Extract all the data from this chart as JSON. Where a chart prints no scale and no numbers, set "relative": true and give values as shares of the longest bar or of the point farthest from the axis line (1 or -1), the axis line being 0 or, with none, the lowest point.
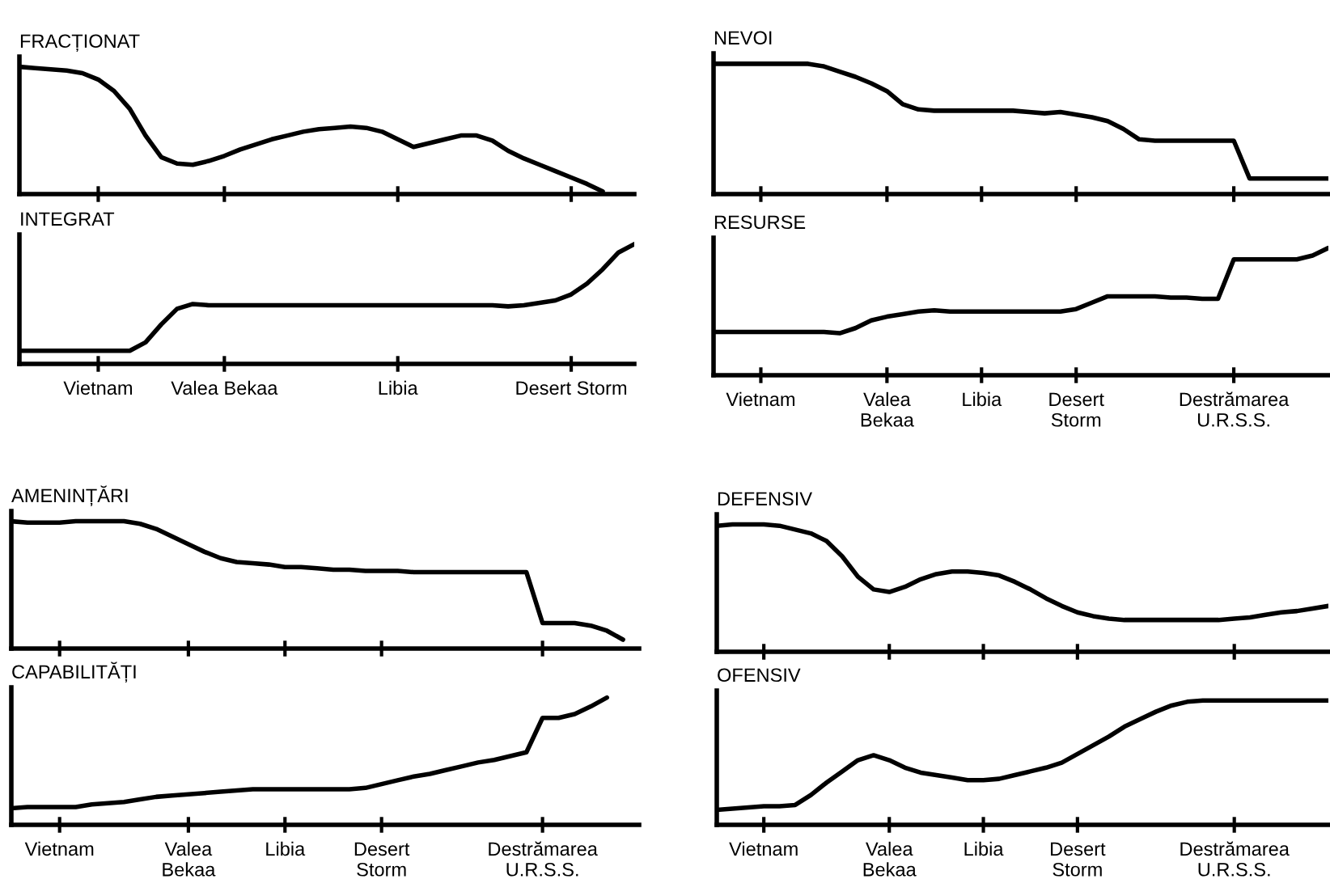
{
  "chart_data": [
    {
      "type": "line",
      "title": "FRACȚIONAT",
      "relative": true,
      "tick_labels": false,
      "categories": [
        null,
        null,
        null,
        null,
        null,
        null,
        null,
        null,
        null,
        null,
        null,
        null,
        null,
        null,
        null,
        null,
        null,
        null,
        null,
        null,
        null,
        null,
        null,
        null,
        null,
        null,
        null,
        null,
        null,
        null,
        null,
        null,
        null,
        null,
        null,
        null,
        null,
        null,
        null,
        null
      ],
      "series": [
        {
          "color": "#000000",
          "values": [
            1.0,
            0.99,
            0.98,
            0.97,
            0.95,
            0.9,
            0.81,
            0.67,
            0.46,
            0.29,
            0.24,
            0.23,
            0.26,
            0.3,
            0.35,
            0.39,
            0.43,
            0.46,
            0.49,
            0.51,
            0.52,
            0.53,
            0.52,
            0.49,
            0.43,
            0.37,
            0.4,
            0.43,
            0.46,
            0.46,
            0.42,
            0.34,
            0.28,
            0.23,
            0.18,
            0.13,
            0.08,
            0.02,
            null,
            null
          ]
        }
      ]
    },
    {
      "type": "line",
      "title": "INTEGRAT",
      "relative": true,
      "categories": [
        null,
        null,
        null,
        null,
        null,
        "Vietnam",
        null,
        null,
        null,
        null,
        null,
        null,
        null,
        "Valea Bekaa",
        null,
        null,
        null,
        null,
        null,
        null,
        null,
        null,
        null,
        null,
        "Libia",
        null,
        null,
        null,
        null,
        null,
        null,
        null,
        null,
        null,
        null,
        "Desert Storm",
        null,
        null,
        null,
        null
      ],
      "series": [
        {
          "color": "#000000",
          "values": [
            0.11,
            0.11,
            0.11,
            0.11,
            0.11,
            0.11,
            0.11,
            0.11,
            0.18,
            0.33,
            0.46,
            0.5,
            0.49,
            0.49,
            0.49,
            0.49,
            0.49,
            0.49,
            0.49,
            0.49,
            0.49,
            0.49,
            0.49,
            0.49,
            0.49,
            0.49,
            0.49,
            0.49,
            0.49,
            0.49,
            0.49,
            0.48,
            0.49,
            0.51,
            0.53,
            0.58,
            0.67,
            0.79,
            0.93,
            1.0
          ]
        }
      ]
    },
    {
      "type": "line",
      "title": "NEVOI",
      "relative": true,
      "tick_labels": false,
      "categories": [
        null,
        null,
        null,
        null,
        null,
        null,
        null,
        null,
        null,
        null,
        null,
        null,
        null,
        null,
        null,
        null,
        null,
        null,
        null,
        null,
        null,
        null,
        null,
        null,
        null,
        null,
        null,
        null,
        null,
        null,
        null,
        null,
        null,
        null,
        null,
        null,
        null,
        null,
        null,
        null
      ],
      "series": [
        {
          "color": "#000000",
          "values": [
            1.0,
            1.0,
            1.0,
            1.0,
            1.0,
            1.0,
            1.0,
            0.98,
            0.94,
            0.9,
            0.85,
            0.79,
            0.69,
            0.65,
            0.64,
            0.64,
            0.64,
            0.64,
            0.64,
            0.64,
            0.63,
            0.62,
            0.63,
            0.61,
            0.59,
            0.56,
            0.5,
            0.42,
            0.41,
            0.41,
            0.41,
            0.41,
            0.41,
            0.41,
            0.12,
            0.12,
            0.12,
            0.12,
            0.12,
            0.12
          ]
        }
      ]
    },
    {
      "type": "line",
      "title": "RESURSE",
      "relative": true,
      "categories": [
        null,
        null,
        null,
        "Vietnam",
        null,
        null,
        null,
        null,
        null,
        null,
        null,
        "Valea\nBekaa",
        null,
        null,
        null,
        null,
        null,
        "Libia",
        null,
        null,
        null,
        null,
        null,
        "Desert\nStorm",
        null,
        null,
        null,
        null,
        null,
        null,
        null,
        null,
        null,
        "Destrămarea\nU.R.S.S.",
        null,
        null,
        null,
        null,
        null,
        null
      ],
      "series": [
        {
          "color": "#000000",
          "values": [
            0.34,
            0.34,
            0.34,
            0.34,
            0.34,
            0.34,
            0.34,
            0.34,
            0.33,
            0.37,
            0.43,
            0.46,
            0.48,
            0.5,
            0.51,
            0.5,
            0.5,
            0.5,
            0.5,
            0.5,
            0.5,
            0.5,
            0.5,
            0.52,
            0.57,
            0.62,
            0.62,
            0.62,
            0.62,
            0.61,
            0.61,
            0.6,
            0.6,
            0.91,
            0.91,
            0.91,
            0.91,
            0.91,
            0.94,
            1.0
          ]
        }
      ]
    },
    {
      "type": "line",
      "title": "AMENINȚĂRI",
      "relative": true,
      "tick_labels": false,
      "categories": [
        null,
        null,
        null,
        null,
        null,
        null,
        null,
        null,
        null,
        null,
        null,
        null,
        null,
        null,
        null,
        null,
        null,
        null,
        null,
        null,
        null,
        null,
        null,
        null,
        null,
        null,
        null,
        null,
        null,
        null,
        null,
        null,
        null,
        null,
        null,
        null,
        null,
        null,
        null,
        null
      ],
      "series": [
        {
          "color": "#000000",
          "values": [
            1.0,
            0.99,
            0.99,
            0.99,
            1.0,
            1.0,
            1.0,
            1.0,
            0.98,
            0.94,
            0.88,
            0.82,
            0.76,
            0.71,
            0.68,
            0.67,
            0.66,
            0.64,
            0.64,
            0.63,
            0.62,
            0.62,
            0.61,
            0.61,
            0.61,
            0.6,
            0.6,
            0.6,
            0.6,
            0.6,
            0.6,
            0.6,
            0.6,
            0.2,
            0.2,
            0.2,
            0.18,
            0.14,
            0.07,
            null
          ]
        }
      ]
    },
    {
      "type": "line",
      "title": "CAPABILITĂȚI",
      "relative": true,
      "categories": [
        null,
        null,
        null,
        "Vietnam",
        null,
        null,
        null,
        null,
        null,
        null,
        null,
        "Valea\nBekaa",
        null,
        null,
        null,
        null,
        null,
        "Libia",
        null,
        null,
        null,
        null,
        null,
        "Desert\nStorm",
        null,
        null,
        null,
        null,
        null,
        null,
        null,
        null,
        null,
        "Destrămarea\nU.R.S.S.",
        null,
        null,
        null,
        null,
        null,
        null
      ],
      "series": [
        {
          "color": "#000000",
          "values": [
            0.13,
            0.14,
            0.14,
            0.14,
            0.14,
            0.16,
            0.17,
            0.18,
            0.2,
            0.22,
            0.23,
            0.24,
            0.25,
            0.26,
            0.27,
            0.28,
            0.28,
            0.28,
            0.28,
            0.28,
            0.28,
            0.28,
            0.29,
            0.32,
            0.35,
            0.38,
            0.4,
            0.43,
            0.46,
            0.49,
            0.51,
            0.54,
            0.57,
            0.84,
            0.84,
            0.87,
            0.93,
            1.0,
            null,
            null
          ]
        }
      ]
    },
    {
      "type": "line",
      "title": "DEFENSIV",
      "relative": true,
      "tick_labels": false,
      "categories": [
        null,
        null,
        null,
        null,
        null,
        null,
        null,
        null,
        null,
        null,
        null,
        null,
        null,
        null,
        null,
        null,
        null,
        null,
        null,
        null,
        null,
        null,
        null,
        null,
        null,
        null,
        null,
        null,
        null,
        null,
        null,
        null,
        null,
        null,
        null,
        null,
        null,
        null,
        null,
        null
      ],
      "series": [
        {
          "color": "#000000",
          "values": [
            0.99,
            1.0,
            1.0,
            1.0,
            0.99,
            0.96,
            0.93,
            0.87,
            0.75,
            0.59,
            0.49,
            0.47,
            0.51,
            0.57,
            0.61,
            0.63,
            0.63,
            0.62,
            0.6,
            0.55,
            0.49,
            0.42,
            0.36,
            0.31,
            0.28,
            0.26,
            0.25,
            0.25,
            0.25,
            0.25,
            0.25,
            0.25,
            0.25,
            0.26,
            0.27,
            0.29,
            0.31,
            0.32,
            0.34,
            0.36
          ]
        }
      ]
    },
    {
      "type": "line",
      "title": "OFENSIV",
      "relative": true,
      "categories": [
        null,
        null,
        null,
        "Vietnam",
        null,
        null,
        null,
        null,
        null,
        null,
        null,
        "Valea\nBekaa",
        null,
        null,
        null,
        null,
        null,
        "Libia",
        null,
        null,
        null,
        null,
        null,
        "Desert\nStorm",
        null,
        null,
        null,
        null,
        null,
        null,
        null,
        null,
        null,
        "Destrămarea\nU.R.S.S.",
        null,
        null,
        null,
        null,
        null,
        null
      ],
      "series": [
        {
          "color": "#000000",
          "values": [
            0.12,
            0.13,
            0.14,
            0.15,
            0.15,
            0.16,
            0.24,
            0.34,
            0.43,
            0.52,
            0.56,
            0.52,
            0.46,
            0.42,
            0.4,
            0.38,
            0.36,
            0.36,
            0.37,
            0.4,
            0.43,
            0.46,
            0.5,
            0.57,
            0.64,
            0.71,
            0.79,
            0.85,
            0.91,
            0.96,
            0.99,
            1.0,
            1.0,
            1.0,
            1.0,
            1.0,
            1.0,
            1.0,
            1.0,
            1.0
          ]
        }
      ]
    }
  ]
}
